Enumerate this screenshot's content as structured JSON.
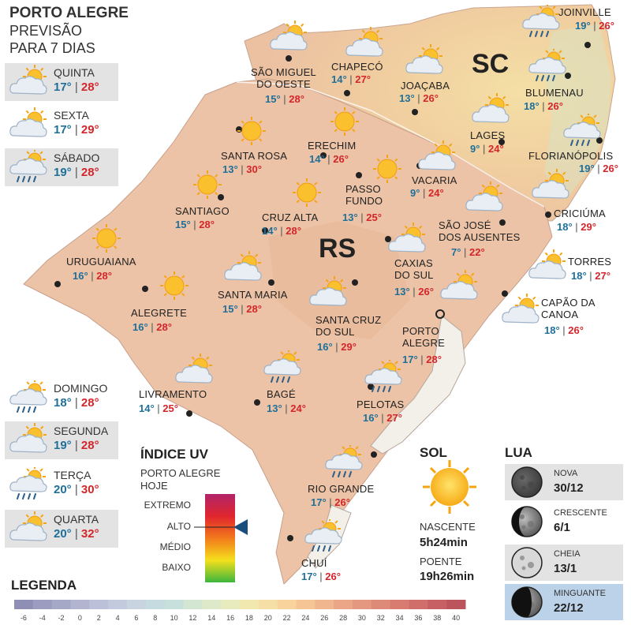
{
  "header": {
    "title": "PORTO ALEGRE",
    "subtitle1": "PREVISÃO",
    "subtitle2": "PARA 7 DIAS"
  },
  "forecast": [
    {
      "day": "QUINTA",
      "min": "17°",
      "max": "28°",
      "icon": "partly-cloudy-icon"
    },
    {
      "day": "SEXTA",
      "min": "17°",
      "max": "29°",
      "icon": "partly-cloudy-icon"
    },
    {
      "day": "SÁBADO",
      "min": "19°",
      "max": "28°",
      "icon": "rain-sun-icon"
    },
    {
      "day": "DOMINGO",
      "min": "18°",
      "max": "28°",
      "icon": "rain-sun-icon"
    },
    {
      "day": "SEGUNDA",
      "min": "19°",
      "max": "28°",
      "icon": "partly-cloudy-icon"
    },
    {
      "day": "TERÇA",
      "min": "20°",
      "max": "30°",
      "icon": "rain-sun-icon"
    },
    {
      "day": "QUARTA",
      "min": "20°",
      "max": "32°",
      "icon": "partly-cloudy-icon"
    }
  ],
  "states": {
    "sc": "SC",
    "rs": "RS"
  },
  "cities": [
    {
      "name": "JOINVILLE",
      "min": "19°",
      "max": "26°",
      "icon": "rain-sun-icon"
    },
    {
      "name": "SÃO MIGUEL\nDO OESTE",
      "min": "15°",
      "max": "28°",
      "icon": "partly-cloudy-icon"
    },
    {
      "name": "CHAPECÓ",
      "min": "14°",
      "max": "27°",
      "icon": "partly-cloudy-icon"
    },
    {
      "name": "JOAÇABA",
      "min": "13°",
      "max": "26°",
      "icon": "partly-cloudy-icon"
    },
    {
      "name": "BLUMENAU",
      "min": "18°",
      "max": "26°",
      "icon": "rain-sun-icon"
    },
    {
      "name": "LAGES",
      "min": "9°",
      "max": "24°",
      "icon": "partly-cloudy-icon"
    },
    {
      "name": "FLORIANÓPOLIS",
      "min": "19°",
      "max": "26°",
      "icon": "rain-sun-icon"
    },
    {
      "name": "SANTA ROSA",
      "min": "13°",
      "max": "30°",
      "icon": "sun-icon"
    },
    {
      "name": "ERECHIM",
      "min": "14°",
      "max": "26°",
      "icon": "sun-icon"
    },
    {
      "name": "VACARIA",
      "min": "9°",
      "max": "24°",
      "icon": "partly-cloudy-icon"
    },
    {
      "name": "PASSO\nFUNDO",
      "min": "13°",
      "max": "25°",
      "icon": "sun-icon"
    },
    {
      "name": "SANTIAGO",
      "min": "15°",
      "max": "28°",
      "icon": "sun-icon"
    },
    {
      "name": "CRUZ ALTA",
      "min": "14°",
      "max": "28°",
      "icon": "sun-icon"
    },
    {
      "name": "SÃO JOSÉ\nDOS AUSENTES",
      "min": "7°",
      "max": "22°",
      "icon": "partly-cloudy-icon"
    },
    {
      "name": "CRICIÚMA",
      "min": "18°",
      "max": "29°",
      "icon": "partly-cloudy-icon"
    },
    {
      "name": "URUGUAIANA",
      "min": "16°",
      "max": "28°",
      "icon": "sun-icon"
    },
    {
      "name": "CAXIAS\nDO SUL",
      "min": "13°",
      "max": "26°",
      "icon": "partly-cloudy-icon"
    },
    {
      "name": "TORRES",
      "min": "18°",
      "max": "27°",
      "icon": "partly-cloudy-icon"
    },
    {
      "name": "SANTA MARIA",
      "min": "15°",
      "max": "28°",
      "icon": "partly-cloudy-icon"
    },
    {
      "name": "ALEGRETE",
      "min": "16°",
      "max": "28°",
      "icon": "sun-icon"
    },
    {
      "name": "CAPÃO DA\nCANOA",
      "min": "18°",
      "max": "26°",
      "icon": "partly-cloudy-icon"
    },
    {
      "name": "SANTA CRUZ\nDO SUL",
      "min": "16°",
      "max": "29°",
      "icon": "partly-cloudy-icon"
    },
    {
      "name": "PORTO\nALEGRE",
      "min": "17°",
      "max": "28°",
      "icon": "partly-cloudy-icon"
    },
    {
      "name": "LIVRAMENTO",
      "min": "14°",
      "max": "25°",
      "icon": "partly-cloudy-icon"
    },
    {
      "name": "BAGÉ",
      "min": "13°",
      "max": "24°",
      "icon": "rain-sun-icon"
    },
    {
      "name": "PELOTAS",
      "min": "16°",
      "max": "27°",
      "icon": "rain-sun-icon"
    },
    {
      "name": "RIO GRANDE",
      "min": "17°",
      "max": "26°",
      "icon": "rain-sun-icon"
    },
    {
      "name": "CHUÍ",
      "min": "17°",
      "max": "26°",
      "icon": "rain-sun-icon"
    }
  ],
  "uv": {
    "title": "ÍNDICE UV",
    "subtitle1": "PORTO ALEGRE",
    "subtitle2": "HOJE",
    "levels": [
      "EXTREMO",
      "ALTO",
      "MÉDIO",
      "BAIXO"
    ],
    "current": "ALTO",
    "level_fraction": 0.6
  },
  "sol": {
    "title": "SOL",
    "sunrise_label": "NASCENTE",
    "sunrise": "5h24min",
    "sunset_label": "POENTE",
    "sunset": "19h26min"
  },
  "lua": {
    "title": "LUA",
    "phases": [
      {
        "name": "NOVA",
        "date": "30/12",
        "icon": "full-moon-dark-icon"
      },
      {
        "name": "CRESCENTE",
        "date": "6/1",
        "icon": "waxing-moon-icon"
      },
      {
        "name": "CHEIA",
        "date": "13/1",
        "icon": "full-moon-icon"
      },
      {
        "name": "MINGUANTE",
        "date": "22/12",
        "icon": "waning-moon-icon"
      }
    ]
  },
  "legend": {
    "title": "LEGENDA",
    "ticks": [
      "-6",
      "-4",
      "-2",
      "0",
      "2",
      "4",
      "6",
      "8",
      "10",
      "12",
      "14",
      "16",
      "18",
      "20",
      "22",
      "24",
      "26",
      "28",
      "30",
      "32",
      "34",
      "36",
      "38",
      "40"
    ],
    "colors": [
      "#8f8fb5",
      "#9c9cc0",
      "#a6a8c8",
      "#b2b4d0",
      "#bcc0d8",
      "#c4cade",
      "#c8d4e0",
      "#c6dbe0",
      "#c8e0dc",
      "#d2e6d2",
      "#dde9c8",
      "#e8ebbd",
      "#f1e8b0",
      "#f6dfa6",
      "#f8d39c",
      "#f6c595",
      "#f0b68d",
      "#eaa686",
      "#e4987f",
      "#de8a78",
      "#d87c72",
      "#d06e6b",
      "#c66064",
      "#bc545d"
    ]
  }
}
